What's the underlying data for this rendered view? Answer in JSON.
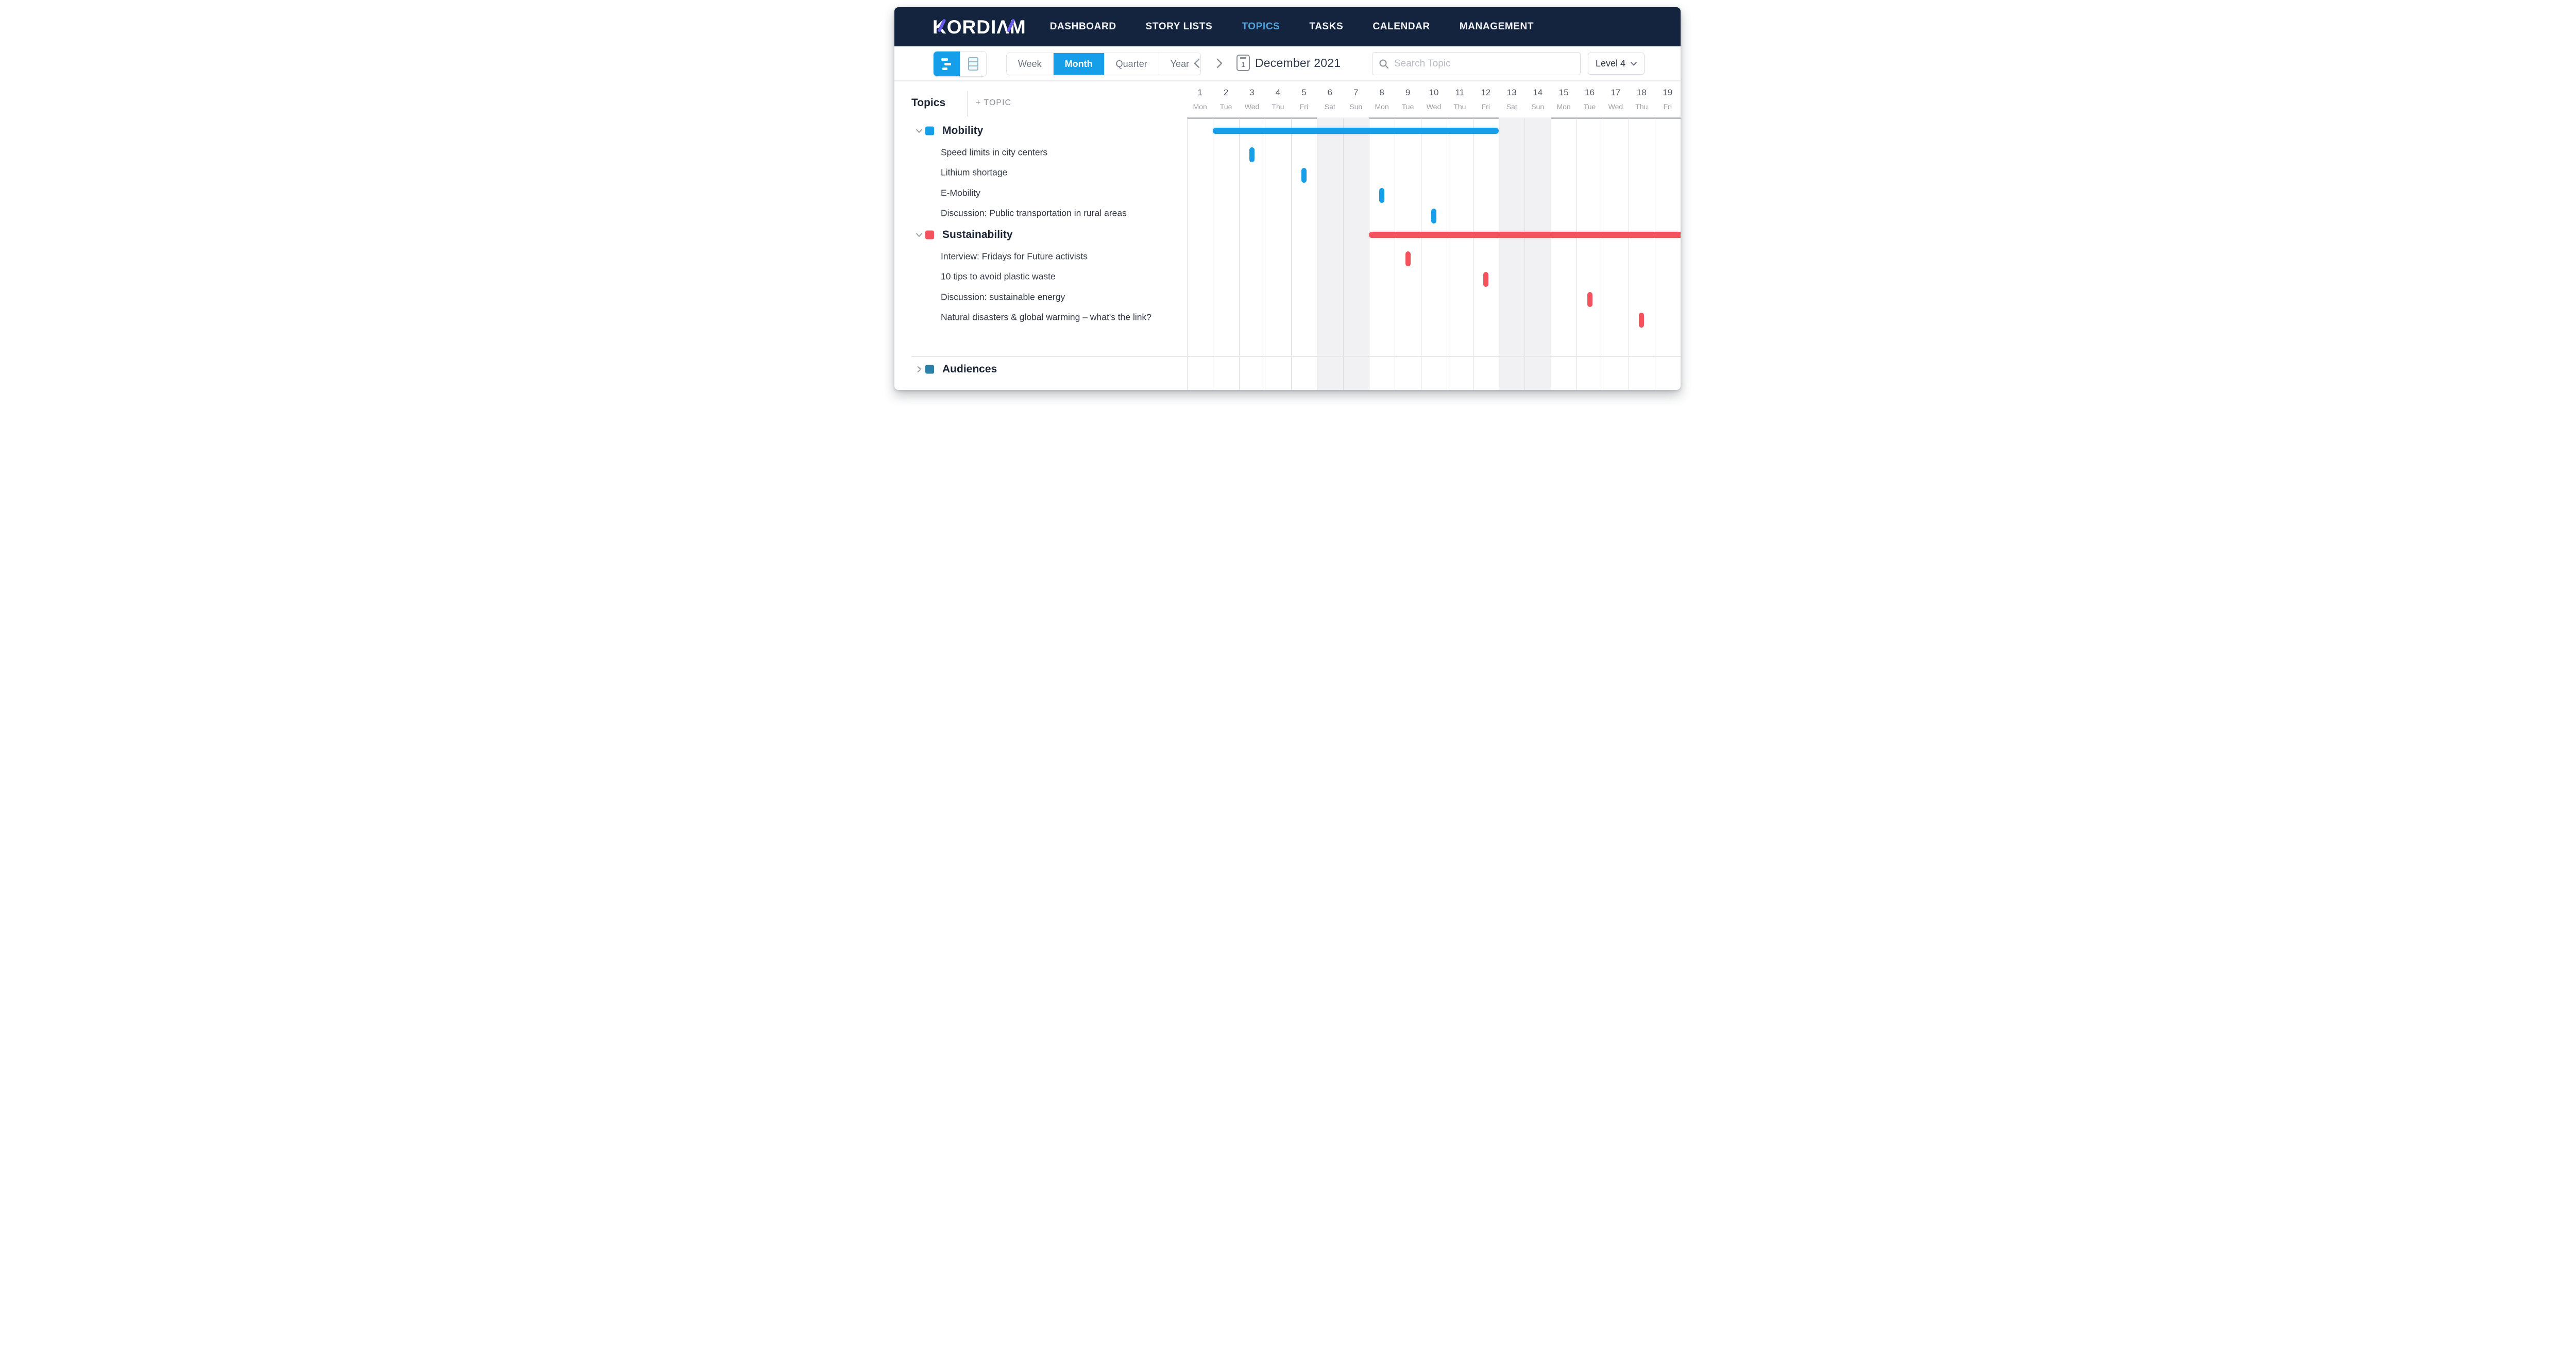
{
  "brand": {
    "logo_text": "KORDIΛM",
    "accent_purple": "#6a5be8",
    "nav_bg": "#14243e",
    "active_nav_color": "#4fa3dc"
  },
  "nav": {
    "items": [
      {
        "label": "DASHBOARD",
        "active": false
      },
      {
        "label": "STORY LISTS",
        "active": false
      },
      {
        "label": "TOPICS",
        "active": true
      },
      {
        "label": "TASKS",
        "active": false
      },
      {
        "label": "CALENDAR",
        "active": false
      },
      {
        "label": "MANAGEMENT",
        "active": false
      }
    ]
  },
  "toolbar": {
    "view_toggles": [
      {
        "name": "gantt-view",
        "active": true
      },
      {
        "name": "table-view",
        "active": false
      }
    ],
    "range_options": [
      {
        "label": "Week",
        "active": false
      },
      {
        "label": "Month",
        "active": true
      },
      {
        "label": "Quarter",
        "active": false
      },
      {
        "label": "Year",
        "active": false
      }
    ],
    "date_label": "December 2021",
    "calendar_icon_day": "1",
    "search_placeholder": "Search Topic",
    "level_selector": "Level 4"
  },
  "panel": {
    "title": "Topics",
    "add_button": "+ TOPIC"
  },
  "calendar": {
    "days": [
      {
        "num": "1",
        "name": "Mon",
        "weekend": false
      },
      {
        "num": "2",
        "name": "Tue",
        "weekend": false
      },
      {
        "num": "3",
        "name": "Wed",
        "weekend": false
      },
      {
        "num": "4",
        "name": "Thu",
        "weekend": false
      },
      {
        "num": "5",
        "name": "Fri",
        "weekend": false
      },
      {
        "num": "6",
        "name": "Sat",
        "weekend": true
      },
      {
        "num": "7",
        "name": "Sun",
        "weekend": true
      },
      {
        "num": "8",
        "name": "Mon",
        "weekend": false
      },
      {
        "num": "9",
        "name": "Tue",
        "weekend": false
      },
      {
        "num": "10",
        "name": "Wed",
        "weekend": false
      },
      {
        "num": "11",
        "name": "Thu",
        "weekend": false
      },
      {
        "num": "12",
        "name": "Fri",
        "weekend": false
      },
      {
        "num": "13",
        "name": "Sat",
        "weekend": true
      },
      {
        "num": "14",
        "name": "Sun",
        "weekend": true
      },
      {
        "num": "15",
        "name": "Mon",
        "weekend": false
      },
      {
        "num": "16",
        "name": "Tue",
        "weekend": false
      },
      {
        "num": "17",
        "name": "Wed",
        "weekend": false
      },
      {
        "num": "18",
        "name": "Thu",
        "weekend": false
      },
      {
        "num": "19",
        "name": "Fri",
        "weekend": false
      }
    ]
  },
  "chart_data": {
    "type": "table",
    "title": "Topics gantt for December 2021",
    "rows": [
      {
        "kind": "group",
        "label": "Mobility",
        "color": "#169ee8",
        "expanded": true,
        "bar": {
          "from_day": 2,
          "to_day": 12,
          "to_edge": false
        }
      },
      {
        "kind": "item",
        "label": "Speed limits in city centers",
        "color": "#169ee8",
        "pill_day": 3
      },
      {
        "kind": "item",
        "label": "Lithium shortage",
        "color": "#169ee8",
        "pill_day": 5
      },
      {
        "kind": "item",
        "label": "E-Mobility",
        "color": "#169ee8",
        "pill_day": 8
      },
      {
        "kind": "item",
        "label": "Discussion: Public transportation in rural areas",
        "color": "#169ee8",
        "pill_day": 10
      },
      {
        "kind": "group",
        "label": "Sustainability",
        "color": "#f4535d",
        "expanded": true,
        "bar": {
          "from_day": 8,
          "to_day": 19,
          "to_edge": true
        }
      },
      {
        "kind": "item",
        "label": "Interview: Fridays for Future activists",
        "color": "#f4535d",
        "pill_day": 9
      },
      {
        "kind": "item",
        "label": "10 tips to avoid plastic waste",
        "color": "#f4535d",
        "pill_day": 12
      },
      {
        "kind": "item",
        "label": "Discussion: sustainable energy",
        "color": "#f4535d",
        "pill_day": 16
      },
      {
        "kind": "item",
        "label": "Natural disasters & global warming – what's the link?",
        "color": "#f4535d",
        "pill_day": 18
      }
    ],
    "collapsed_groups": [
      {
        "kind": "group",
        "label": "Audiences",
        "color": "#2b80a8",
        "expanded": false
      }
    ]
  },
  "colors": {
    "blue_bar": "#169ee8",
    "red_bar": "#f4535d",
    "audiences_square": "#2b80a8",
    "weekend_fill": "#f1f1f3",
    "grid_line": "#dcdde1",
    "grid_top_border": "#b9bbc0"
  }
}
